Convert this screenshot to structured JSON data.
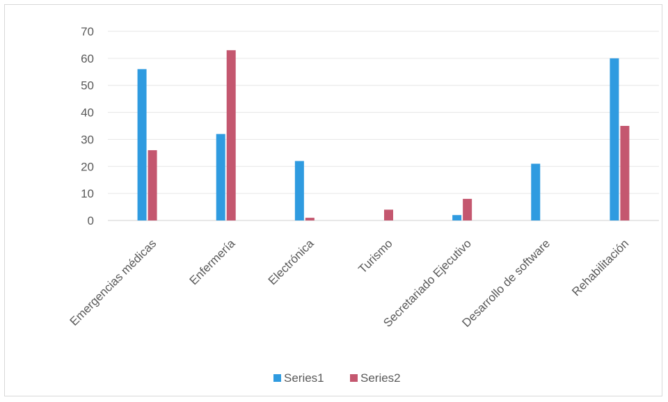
{
  "chart_data": {
    "type": "bar",
    "categories": [
      "Emergencias médicas",
      "Enfermería",
      "Electrónica",
      "Turismo",
      "Secretariado Ejecutivo",
      "Desarrollo de software",
      "Rehabilitación"
    ],
    "series": [
      {
        "name": "Series1",
        "color": "#2f9be0",
        "values": [
          56,
          32,
          22,
          0,
          2,
          21,
          60
        ]
      },
      {
        "name": "Series2",
        "color": "#c4576f",
        "values": [
          26,
          63,
          1,
          4,
          8,
          0,
          35
        ]
      }
    ],
    "ylim": [
      0,
      70
    ],
    "yticks": [
      "0",
      "10",
      "20",
      "30",
      "40",
      "50",
      "60",
      "70"
    ],
    "grid": true,
    "legend": "bottom"
  }
}
